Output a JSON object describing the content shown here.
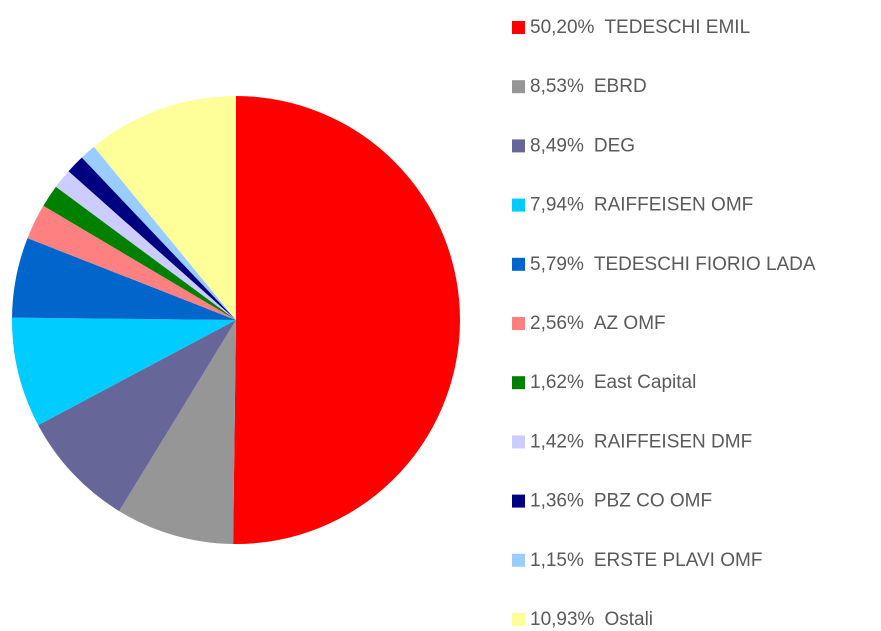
{
  "chart_data": {
    "type": "pie",
    "categories": [
      "TEDESCHI EMIL",
      "EBRD",
      "DEG",
      "RAIFFEISEN OMF",
      "TEDESCHI FIORIO LADA",
      "AZ OMF",
      "East Capital",
      "RAIFFEISEN DMF",
      "PBZ CO OMF",
      "ERSTE PLAVI OMF",
      "Ostali"
    ],
    "values": [
      50.2,
      8.53,
      8.49,
      7.94,
      5.79,
      2.56,
      1.62,
      1.42,
      1.36,
      1.15,
      10.93
    ],
    "value_labels": [
      "50,20%",
      "8,53%",
      "8,49%",
      "7,94%",
      "5,79%",
      "2,56%",
      "1,62%",
      "1,42%",
      "1,36%",
      "1,15%",
      "10,93%"
    ],
    "colors": [
      "#ff0000",
      "#969696",
      "#666699",
      "#00ccff",
      "#0066cc",
      "#ff8080",
      "#008000",
      "#ccccff",
      "#000080",
      "#99ccff",
      "#ffff99"
    ],
    "legend": "right"
  }
}
